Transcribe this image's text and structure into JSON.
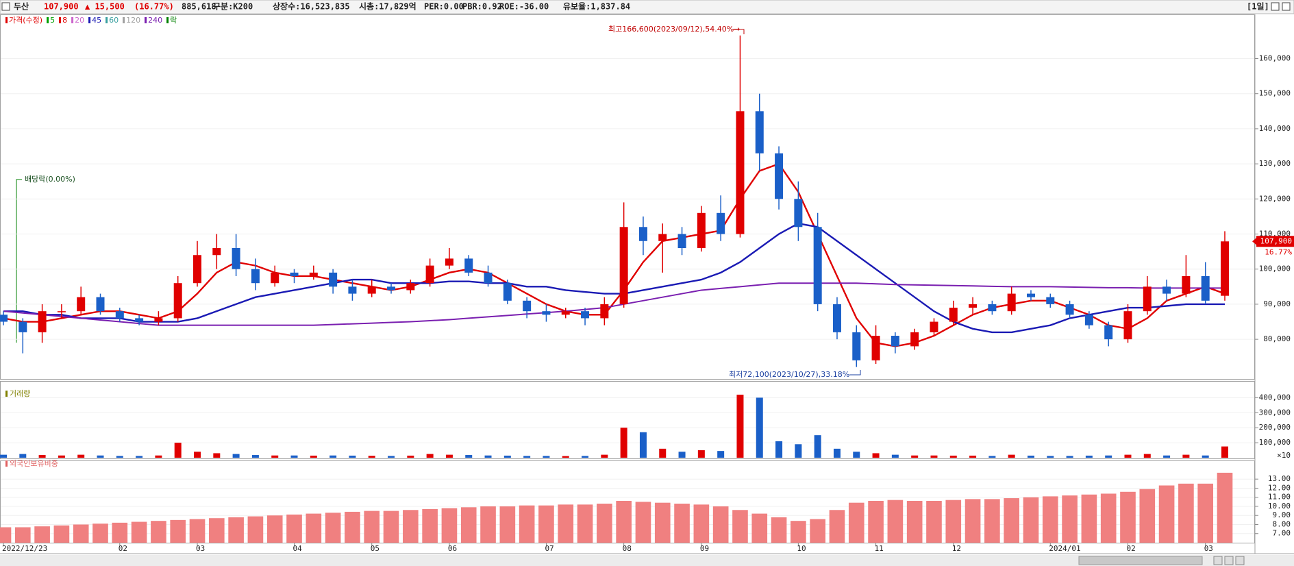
{
  "header": {
    "name": "두산",
    "price": "107,900",
    "change": "▲ 15,500",
    "change_rate": "(16.77%)",
    "volume": "885,618",
    "category": "구분:K200",
    "listed_shares": "상장수:16,523,835",
    "market_cap": "시총:17,829억",
    "per": "PER:0.00",
    "pbr": "PBR:0.92",
    "roe": "ROE:-36.00",
    "reserve_ratio": "유보율:1,837.84",
    "period": "[1일]"
  },
  "annotations": {
    "high": "최고166,600(2023/09/12),54.40%→",
    "low": "최저72,100(2023/10/27),33.18%",
    "dividend": "배당락(0.00%)"
  },
  "chart_data": [
    {
      "type": "candlestick",
      "categories": [
        "2022/12/23",
        null,
        null,
        null,
        null,
        null,
        "02",
        null,
        null,
        null,
        "03",
        null,
        null,
        null,
        null,
        "04",
        null,
        null,
        null,
        "05",
        null,
        null,
        null,
        "06",
        null,
        null,
        null,
        null,
        "07",
        null,
        null,
        null,
        "08",
        null,
        null,
        null,
        "09",
        null,
        null,
        null,
        null,
        "10",
        null,
        null,
        null,
        "11",
        null,
        null,
        null,
        "12",
        null,
        null,
        null,
        null,
        "2024/01",
        null,
        null,
        null,
        "02",
        null,
        null,
        null,
        "03",
        null
      ],
      "up_color": "#e00000",
      "down_color": "#1a5fc8",
      "series": [
        {
          "name": "가격(수정)",
          "color": "#e00000",
          "open": [
            87000,
            85000,
            82000,
            88000,
            88000,
            92000,
            88000,
            86000,
            85000,
            86000,
            96000,
            104000,
            106000,
            100000,
            96000,
            99000,
            98000,
            99000,
            95000,
            93000,
            95000,
            94000,
            96000,
            101000,
            103000,
            99000,
            96000,
            91000,
            88000,
            87000,
            88000,
            86000,
            90000,
            112000,
            108000,
            110000,
            106000,
            116000,
            110000,
            145000,
            133000,
            120000,
            112000,
            90000,
            82000,
            74000,
            81000,
            78000,
            82000,
            85000,
            89000,
            90000,
            88000,
            93000,
            92000,
            90000,
            87000,
            84000,
            80000,
            88000,
            95000,
            93000,
            98000,
            92400
          ],
          "high": [
            88000,
            86000,
            90000,
            90000,
            95000,
            93000,
            89000,
            87000,
            88000,
            98000,
            108000,
            110000,
            110000,
            103000,
            101000,
            100000,
            101000,
            100000,
            97000,
            97000,
            96000,
            97000,
            103000,
            106000,
            104000,
            101000,
            97000,
            92000,
            90000,
            89000,
            89000,
            92000,
            119000,
            115000,
            113000,
            112000,
            118000,
            121000,
            166600,
            150000,
            135000,
            125000,
            116000,
            92000,
            84000,
            84000,
            82000,
            83000,
            86000,
            91000,
            92000,
            91000,
            95000,
            94000,
            93000,
            91000,
            88000,
            85000,
            90000,
            98000,
            97000,
            104000,
            102000,
            110800
          ],
          "low": [
            84000,
            76000,
            79000,
            86000,
            87000,
            87000,
            85000,
            84000,
            84000,
            85000,
            95000,
            100000,
            98000,
            94000,
            95000,
            96000,
            97000,
            93000,
            91000,
            92000,
            93000,
            93000,
            95000,
            100000,
            98000,
            95000,
            90000,
            86000,
            85000,
            86000,
            84000,
            84000,
            89000,
            104000,
            99000,
            104000,
            105000,
            108000,
            109000,
            128000,
            117000,
            108000,
            88000,
            80000,
            72100,
            73000,
            76000,
            77000,
            81000,
            84000,
            87000,
            87000,
            87000,
            91000,
            89000,
            86000,
            83000,
            78000,
            79000,
            87000,
            91000,
            92000,
            90000,
            91000
          ],
          "close": [
            85000,
            82000,
            88000,
            88000,
            92000,
            88000,
            86000,
            85000,
            86000,
            96000,
            104000,
            106000,
            100000,
            96000,
            99000,
            98000,
            99000,
            95000,
            93000,
            95000,
            94000,
            96000,
            101000,
            103000,
            99000,
            96000,
            91000,
            88000,
            87000,
            88000,
            86000,
            90000,
            112000,
            108000,
            110000,
            106000,
            116000,
            110000,
            145000,
            133000,
            120000,
            112000,
            90000,
            82000,
            74000,
            81000,
            78000,
            82000,
            85000,
            89000,
            90000,
            88000,
            93000,
            92000,
            90000,
            87000,
            84000,
            80000,
            88000,
            95000,
            93000,
            98000,
            91000,
            107900
          ]
        }
      ],
      "moving_averages": [
        {
          "name": "5",
          "color": "#00a000"
        },
        {
          "name": "8",
          "color": "#e00000",
          "values": [
            86000,
            85000,
            85000,
            86000,
            87000,
            88000,
            88000,
            87000,
            86000,
            88000,
            93000,
            99000,
            102000,
            101000,
            99000,
            98000,
            98000,
            97000,
            96000,
            95000,
            94000,
            95000,
            97000,
            99000,
            100000,
            99000,
            96000,
            93000,
            90000,
            88000,
            87000,
            87000,
            94000,
            102000,
            108000,
            109000,
            110000,
            111000,
            120000,
            128000,
            130000,
            122000,
            110000,
            98000,
            86000,
            79000,
            78000,
            79000,
            81000,
            84000,
            87000,
            89000,
            90000,
            91000,
            91000,
            89000,
            87000,
            84000,
            83000,
            86000,
            91000,
            93000,
            95000,
            93000
          ]
        },
        {
          "name": "20",
          "color": "#cc66cc"
        },
        {
          "name": "45",
          "color": "#1a1ab4",
          "values": [
            88000,
            88000,
            87000,
            87000,
            86000,
            86000,
            86000,
            85000,
            85000,
            85000,
            86000,
            88000,
            90000,
            92000,
            93000,
            94000,
            95000,
            96000,
            97000,
            97000,
            96000,
            96000,
            96000,
            96500,
            96500,
            96000,
            96000,
            95000,
            95000,
            94000,
            93500,
            93000,
            93000,
            94000,
            95000,
            96000,
            97000,
            99000,
            102000,
            106000,
            110000,
            113000,
            112000,
            108000,
            104000,
            100000,
            96000,
            92000,
            88000,
            85000,
            83000,
            82000,
            82000,
            83000,
            84000,
            86000,
            87000,
            88000,
            89000,
            89000,
            89500,
            90000,
            90000,
            90000
          ]
        },
        {
          "name": "60",
          "color": "#3aa0a0"
        },
        {
          "name": "120",
          "color": "#a0a0a0"
        },
        {
          "name": "240",
          "color": "#7a1fb0",
          "values": [
            88000,
            87500,
            87000,
            86500,
            86000,
            85500,
            85000,
            84500,
            84000,
            84000,
            84000,
            84000,
            84000,
            84000,
            84000,
            84000,
            84000,
            84200,
            84400,
            84600,
            84800,
            85000,
            85300,
            85600,
            86000,
            86400,
            86800,
            87200,
            87600,
            88000,
            88500,
            89000,
            90000,
            91000,
            92000,
            93000,
            94000,
            94500,
            95000,
            95500,
            96000,
            96000,
            96000,
            96000,
            96000,
            95800,
            95600,
            95500,
            95400,
            95300,
            95200,
            95100,
            95000,
            95000,
            95000,
            94900,
            94800,
            94700,
            94700,
            94600,
            94600,
            94600,
            94600,
            94600
          ]
        }
      ],
      "event_legend": {
        "name": "락",
        "color": "#008000"
      },
      "price_tag": {
        "value": 107900,
        "label": "107,900",
        "change": "16.77%"
      },
      "ylim": [
        68700,
        172400
      ],
      "yticks": [
        {
          "value": 80000,
          "label": "80,000"
        },
        {
          "value": 90000,
          "label": "90,000"
        },
        {
          "value": 100000,
          "label": "100,000"
        },
        {
          "value": 110000,
          "label": "110,000"
        },
        {
          "value": 120000,
          "label": "120,000"
        },
        {
          "value": 130000,
          "label": "130,000"
        },
        {
          "value": 140000,
          "label": "140,000"
        },
        {
          "value": 150000,
          "label": "150,000"
        },
        {
          "value": 160000,
          "label": "160,000"
        }
      ]
    },
    {
      "type": "bar",
      "title": "거래량",
      "title_color": "#808000",
      "unit_label": "×10",
      "values": [
        20000,
        25000,
        18000,
        15000,
        20000,
        15000,
        12000,
        12000,
        15000,
        100000,
        40000,
        30000,
        25000,
        18000,
        15000,
        15000,
        14000,
        15000,
        14000,
        13000,
        12000,
        14000,
        25000,
        20000,
        18000,
        15000,
        14000,
        12000,
        12000,
        11000,
        12000,
        20000,
        200000,
        170000,
        60000,
        40000,
        50000,
        45000,
        420000,
        400000,
        110000,
        90000,
        150000,
        60000,
        40000,
        30000,
        20000,
        15000,
        15000,
        14000,
        14000,
        12000,
        20000,
        14000,
        12000,
        12000,
        14000,
        15000,
        20000,
        25000,
        15000,
        20000,
        15000,
        75000
      ],
      "ylim": [
        0,
        470000
      ],
      "yticks": [
        {
          "value": 100000,
          "label": "100,000"
        },
        {
          "value": 200000,
          "label": "200,000"
        },
        {
          "value": 300000,
          "label": "300,000"
        },
        {
          "value": 400000,
          "label": "400,000"
        }
      ]
    },
    {
      "type": "bar",
      "title": "외국인보유비중",
      "title_color": "#e06060",
      "color": "#f08080",
      "values": [
        7.7,
        7.7,
        7.8,
        7.9,
        8.0,
        8.1,
        8.2,
        8.3,
        8.4,
        8.5,
        8.6,
        8.7,
        8.8,
        8.9,
        9.0,
        9.1,
        9.2,
        9.3,
        9.4,
        9.5,
        9.5,
        9.6,
        9.7,
        9.8,
        9.9,
        10.0,
        10.0,
        10.1,
        10.1,
        10.2,
        10.2,
        10.3,
        10.6,
        10.5,
        10.4,
        10.3,
        10.2,
        10.0,
        9.6,
        9.2,
        8.8,
        8.4,
        8.6,
        9.6,
        10.4,
        10.6,
        10.7,
        10.6,
        10.6,
        10.7,
        10.8,
        10.8,
        10.9,
        11.0,
        11.1,
        11.2,
        11.3,
        11.4,
        11.6,
        11.9,
        12.3,
        12.5,
        12.5,
        13.7
      ],
      "ylim": [
        6.0,
        14.9
      ],
      "yticks": [
        {
          "value": 7,
          "label": "7.00"
        },
        {
          "value": 8,
          "label": "8.00"
        },
        {
          "value": 9,
          "label": "9.00"
        },
        {
          "value": 10,
          "label": "10.00"
        },
        {
          "value": 11,
          "label": "11.00"
        },
        {
          "value": 12,
          "label": "12.00"
        },
        {
          "value": 13,
          "label": "13.00"
        }
      ]
    }
  ]
}
